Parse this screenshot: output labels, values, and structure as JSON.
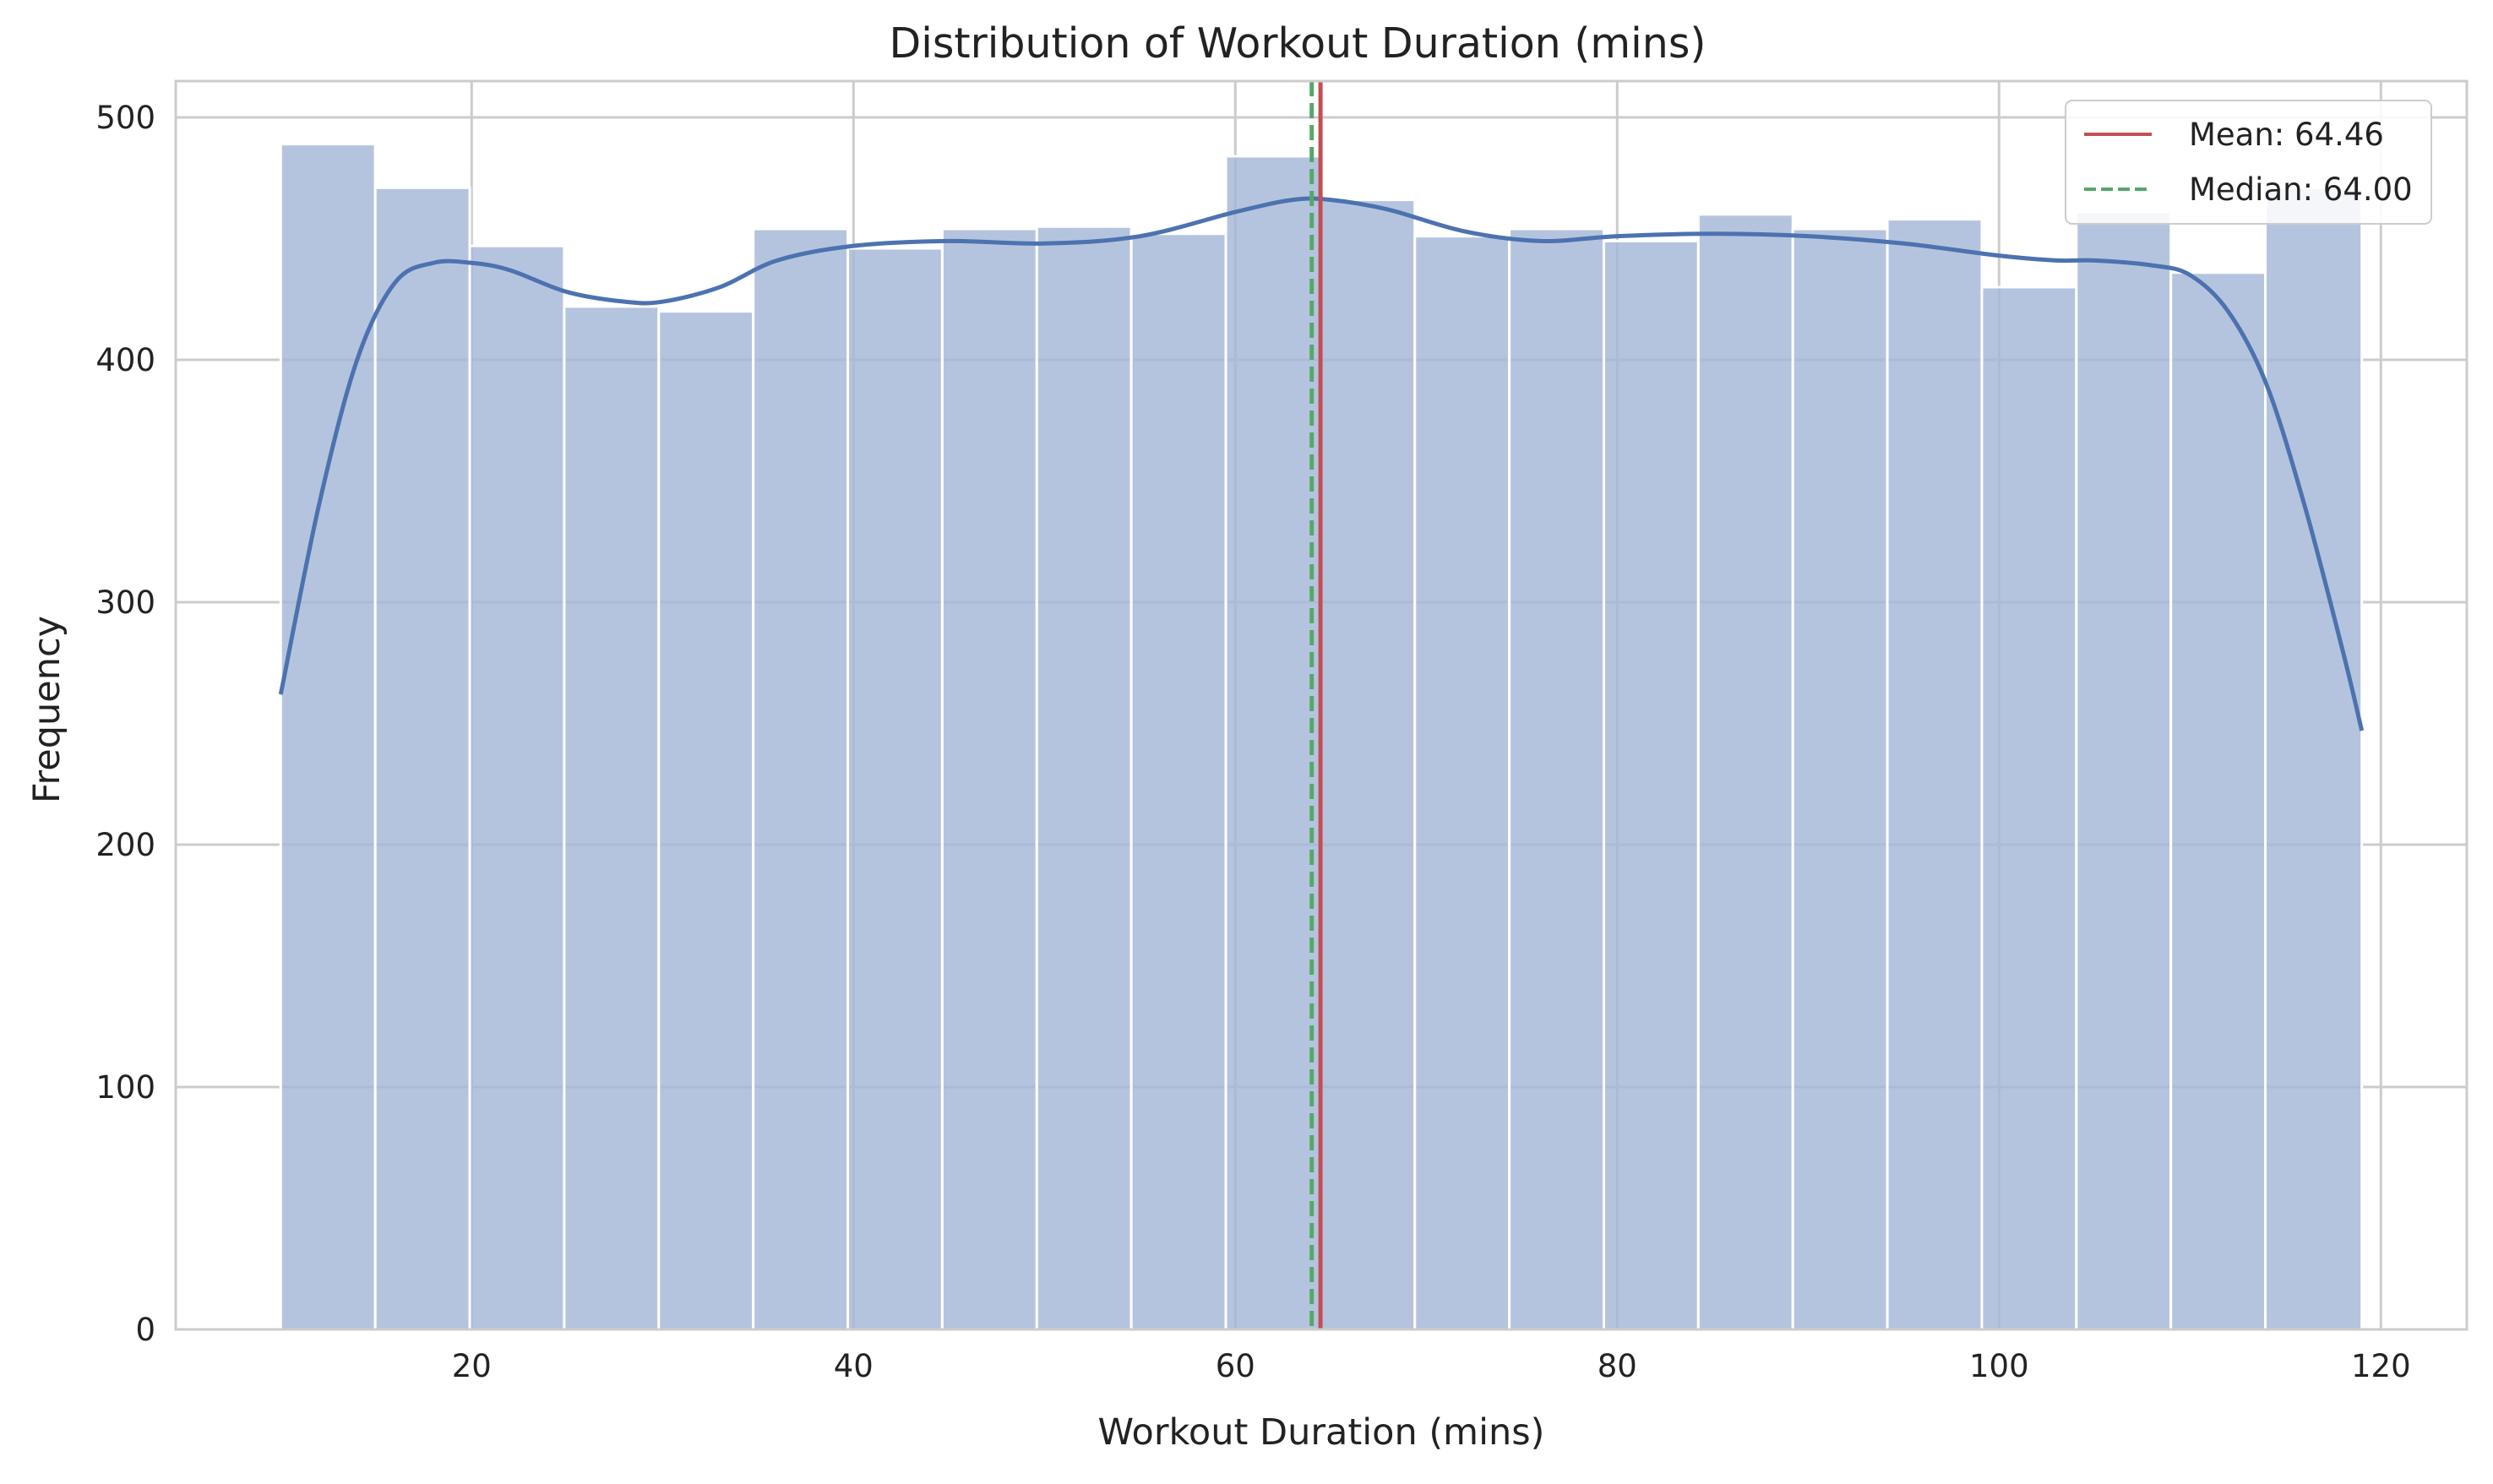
{
  "chart_data": {
    "type": "bar",
    "title": "Distribution of Workout Duration (mins)",
    "xlabel": "Workout Duration (mins)",
    "ylabel": "Frequency",
    "xlim": [
      4.5,
      124.5
    ],
    "ylim": [
      0,
      515
    ],
    "xticks": [
      20,
      40,
      60,
      80,
      100,
      120
    ],
    "yticks": [
      0,
      100,
      200,
      300,
      400,
      500
    ],
    "grid": true,
    "legend_position": "top-right",
    "bin_edges": [
      10,
      14.95,
      19.9,
      24.85,
      29.8,
      34.75,
      39.7,
      44.65,
      49.6,
      54.55,
      59.5,
      64.45,
      69.4,
      74.35,
      79.3,
      84.25,
      89.2,
      94.15,
      99.1,
      104.05,
      109.0,
      113.95,
      119.0
    ],
    "values": [
      489,
      471,
      447,
      422,
      420,
      454,
      446,
      454,
      455,
      452,
      484,
      466,
      451,
      454,
      449,
      460,
      454,
      458,
      430,
      461,
      436,
      471
    ],
    "kde": {
      "x": [
        10,
        12,
        14,
        16,
        18,
        20,
        22,
        25,
        28,
        30,
        33,
        36,
        40,
        45,
        50,
        55,
        60,
        63,
        65,
        68,
        72,
        76,
        80,
        85,
        90,
        95,
        100,
        103,
        105,
        108,
        110,
        112,
        114,
        116,
        118,
        119
      ],
      "y": [
        262,
        340,
        400,
        432,
        440,
        440,
        437,
        428,
        424,
        424,
        430,
        441,
        447,
        449,
        448,
        451,
        461,
        466,
        466,
        462,
        453,
        449,
        451,
        452,
        451,
        448,
        443,
        441,
        441,
        439,
        435,
        420,
        390,
        340,
        280,
        247
      ]
    },
    "mean": 64.46,
    "median": 64.0,
    "legend": [
      "Mean: 64.46",
      "Median: 64.00"
    ],
    "colors": {
      "bar_fill": "#a5b7d7",
      "bar_edge": "#ffffff",
      "kde_line": "#4c72b0",
      "mean_line": "#c44e52",
      "median_line": "#55a868",
      "grid": "#cccccc",
      "frame": "#cccccc"
    }
  }
}
